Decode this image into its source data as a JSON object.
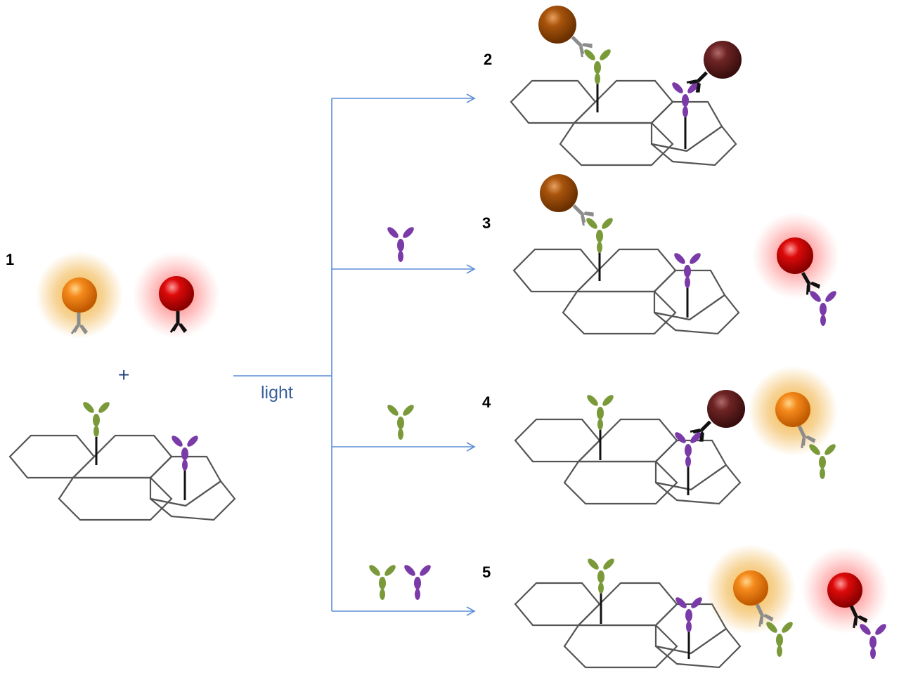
{
  "labels": {
    "p1": "1",
    "p2": "2",
    "p3": "3",
    "p4": "4",
    "p5": "5",
    "plus": "+",
    "light": "light"
  },
  "colors": {
    "orange_bead": "#f07a10",
    "red_bead": "#cc0000",
    "brown_bead": "#a0500a",
    "maroon_bead": "#6e2222",
    "orange_glow": "#f0a020",
    "red_glow": "#ff5a5a",
    "green_antigen": "#7a9a3a",
    "purple_antigen": "#7a3aa8",
    "gray_antibody": "#8c8c8c",
    "black_antibody": "#111111",
    "arrow": "#5b8ed8",
    "lattice": "#555555"
  }
}
